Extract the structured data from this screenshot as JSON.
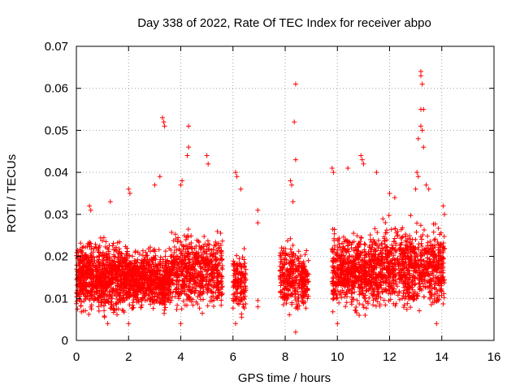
{
  "chart_data": {
    "type": "scatter",
    "title": "Day 338 of 2022, Rate Of TEC Index for receiver abpo",
    "xlabel": "GPS time / hours",
    "ylabel": "ROTI / TECUs",
    "xlim": [
      0,
      16
    ],
    "ylim": [
      0,
      0.07
    ],
    "xticks": [
      "0",
      "2",
      "4",
      "6",
      "8",
      "10",
      "12",
      "14",
      "16"
    ],
    "yticks": [
      "0",
      "0.01",
      "0.02",
      "0.03",
      "0.04",
      "0.05",
      "0.06",
      "0.07"
    ],
    "grid": true,
    "marker": "+",
    "color": "#ff0000",
    "series": [
      {
        "name": "ROTI",
        "clusters": [
          {
            "x_range": [
              0.0,
              2.0
            ],
            "y_range": [
              0.005,
              0.024
            ],
            "count": 900
          },
          {
            "x_range": [
              2.0,
              3.6
            ],
            "y_range": [
              0.006,
              0.022
            ],
            "count": 700
          },
          {
            "x_range": [
              3.6,
              5.6
            ],
            "y_range": [
              0.006,
              0.026
            ],
            "count": 650
          },
          {
            "x_range": [
              6.0,
              6.5
            ],
            "y_range": [
              0.005,
              0.022
            ],
            "count": 150
          },
          {
            "x_range": [
              7.8,
              8.6
            ],
            "y_range": [
              0.005,
              0.024
            ],
            "count": 250
          },
          {
            "x_range": [
              8.6,
              8.9
            ],
            "y_range": [
              0.006,
              0.021
            ],
            "count": 100
          },
          {
            "x_range": [
              9.8,
              11.6
            ],
            "y_range": [
              0.006,
              0.026
            ],
            "count": 700
          },
          {
            "x_range": [
              11.6,
              14.1
            ],
            "y_range": [
              0.006,
              0.028
            ],
            "count": 850
          }
        ],
        "points": [
          [
            3.3,
            0.053
          ],
          [
            3.35,
            0.052
          ],
          [
            3.38,
            0.051
          ],
          [
            4.3,
            0.051
          ],
          [
            4.3,
            0.046
          ],
          [
            4.25,
            0.044
          ],
          [
            5.0,
            0.044
          ],
          [
            5.05,
            0.042
          ],
          [
            3.0,
            0.037
          ],
          [
            3.2,
            0.039
          ],
          [
            4.0,
            0.037
          ],
          [
            4.05,
            0.038
          ],
          [
            2.0,
            0.036
          ],
          [
            2.05,
            0.035
          ],
          [
            1.3,
            0.033
          ],
          [
            0.5,
            0.032
          ],
          [
            0.55,
            0.031
          ],
          [
            6.1,
            0.04
          ],
          [
            6.15,
            0.039
          ],
          [
            6.3,
            0.036
          ],
          [
            6.95,
            0.031
          ],
          [
            6.95,
            0.028
          ],
          [
            6.95,
            0.0095
          ],
          [
            6.95,
            0.008
          ],
          [
            8.4,
            0.061
          ],
          [
            8.35,
            0.052
          ],
          [
            8.4,
            0.043
          ],
          [
            8.2,
            0.038
          ],
          [
            8.25,
            0.037
          ],
          [
            8.3,
            0.033
          ],
          [
            9.8,
            0.041
          ],
          [
            9.85,
            0.04
          ],
          [
            10.4,
            0.041
          ],
          [
            10.9,
            0.044
          ],
          [
            10.95,
            0.043
          ],
          [
            11.0,
            0.042
          ],
          [
            11.5,
            0.04
          ],
          [
            12.0,
            0.035
          ],
          [
            12.2,
            0.034
          ],
          [
            13.2,
            0.064
          ],
          [
            13.2,
            0.063
          ],
          [
            13.25,
            0.061
          ],
          [
            13.2,
            0.055
          ],
          [
            13.3,
            0.055
          ],
          [
            13.2,
            0.051
          ],
          [
            13.25,
            0.05
          ],
          [
            13.1,
            0.048
          ],
          [
            13.3,
            0.046
          ],
          [
            13.05,
            0.04
          ],
          [
            13.1,
            0.039
          ],
          [
            13.0,
            0.036
          ],
          [
            13.4,
            0.037
          ],
          [
            13.5,
            0.036
          ],
          [
            14.05,
            0.032
          ],
          [
            14.1,
            0.03
          ],
          [
            1.2,
            0.004
          ],
          [
            2.0,
            0.004
          ],
          [
            4.0,
            0.004
          ],
          [
            6.1,
            0.004
          ],
          [
            8.4,
            0.002
          ],
          [
            10.0,
            0.004
          ],
          [
            13.8,
            0.004
          ]
        ]
      }
    ]
  }
}
